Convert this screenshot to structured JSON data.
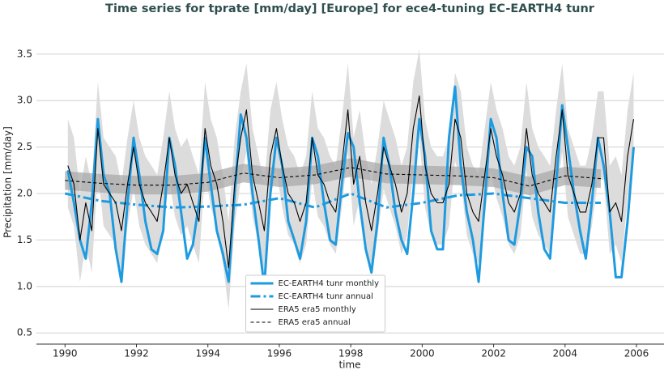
{
  "chart_data": {
    "type": "line",
    "title": "Time series for tprate [mm/day] [Europe] for ece4-tuning EC-EARTH4 tunr",
    "x_label": "time",
    "y_label": "Precipitation [mm/day]",
    "xlim": [
      1989.2,
      2006.77
    ],
    "ylim": [
      0.38,
      3.69
    ],
    "xticks": [
      1990,
      1992,
      1994,
      1996,
      1998,
      2000,
      2002,
      2004,
      2006
    ],
    "yticks": [
      0.5,
      {
        "value": 1,
        "label": "1.0"
      },
      1.5,
      {
        "value": 2,
        "label": "2.0"
      },
      2.5,
      {
        "value": 3,
        "label": "3.0"
      },
      3.5
    ],
    "grid": true,
    "legend": "lower center",
    "x": [
      1990.08,
      1990.25,
      1990.42,
      1990.58,
      1990.75,
      1990.92,
      1991.08,
      1991.25,
      1991.42,
      1991.58,
      1991.75,
      1991.92,
      1992.08,
      1992.25,
      1992.42,
      1992.58,
      1992.75,
      1992.92,
      1993.08,
      1993.25,
      1993.42,
      1993.58,
      1993.75,
      1993.92,
      1994.08,
      1994.25,
      1994.42,
      1994.58,
      1994.75,
      1994.92,
      1995.08,
      1995.25,
      1995.42,
      1995.58,
      1995.75,
      1995.92,
      1996.08,
      1996.25,
      1996.42,
      1996.58,
      1996.75,
      1996.92,
      1997.08,
      1997.25,
      1997.42,
      1997.58,
      1997.75,
      1997.92,
      1998.08,
      1998.25,
      1998.42,
      1998.58,
      1998.75,
      1998.92,
      1999.08,
      1999.25,
      1999.42,
      1999.58,
      1999.75,
      1999.92,
      2000.08,
      2000.25,
      2000.42,
      2000.58,
      2000.75,
      2000.92,
      2001.08,
      2001.25,
      2001.42,
      2001.58,
      2001.75,
      2001.92,
      2002.08,
      2002.25,
      2002.42,
      2002.58,
      2002.75,
      2002.92,
      2003.08,
      2003.25,
      2003.42,
      2003.58,
      2003.75,
      2003.92,
      2004.08,
      2004.25,
      2004.42,
      2004.58,
      2004.75,
      2004.92,
      2005.08,
      2005.25,
      2005.42,
      2005.58,
      2005.75,
      2005.92
    ],
    "bands": [
      {
        "color": "#dcdcdc",
        "lower": [
          1.85,
          1.65,
          1.05,
          1.45,
          1.15,
          2.25,
          1.65,
          1.55,
          1.45,
          1.15,
          1.65,
          2.05,
          1.65,
          1.45,
          1.35,
          1.25,
          1.65,
          2.15,
          1.75,
          1.55,
          1.65,
          1.45,
          1.25,
          2.25,
          1.85,
          1.65,
          1.25,
          0.75,
          1.65,
          2.15,
          2.45,
          1.75,
          1.45,
          1.15,
          1.95,
          2.25,
          1.85,
          1.55,
          1.45,
          1.25,
          1.45,
          2.15,
          1.75,
          1.65,
          1.45,
          1.35,
          1.85,
          2.45,
          1.65,
          1.95,
          1.45,
          1.15,
          1.55,
          2.05,
          1.85,
          1.65,
          1.35,
          1.55,
          2.25,
          2.6,
          1.85,
          1.55,
          1.45,
          1.45,
          1.65,
          2.35,
          2.15,
          1.55,
          1.35,
          1.25,
          1.75,
          2.25,
          1.95,
          1.75,
          1.45,
          1.35,
          1.55,
          2.25,
          1.75,
          1.55,
          1.45,
          1.35,
          1.95,
          2.45,
          1.75,
          1.55,
          1.35,
          1.35,
          1.65,
          2.15,
          2.15,
          1.35,
          1.45,
          1.25,
          1.95,
          2.35
        ],
        "upper": [
          2.8,
          2.6,
          2.0,
          2.4,
          2.1,
          3.2,
          2.6,
          2.5,
          2.4,
          2.1,
          2.6,
          3.0,
          2.6,
          2.4,
          2.3,
          2.2,
          2.6,
          3.1,
          2.7,
          2.5,
          2.6,
          2.4,
          2.2,
          3.2,
          2.8,
          2.6,
          2.2,
          1.7,
          2.6,
          3.1,
          3.4,
          2.7,
          2.4,
          2.1,
          2.9,
          3.2,
          2.8,
          2.5,
          2.4,
          2.2,
          2.4,
          3.1,
          2.7,
          2.6,
          2.4,
          2.3,
          2.8,
          3.4,
          2.6,
          2.9,
          2.4,
          2.1,
          2.5,
          3.0,
          2.8,
          2.6,
          2.3,
          2.5,
          3.2,
          3.55,
          2.8,
          2.5,
          2.4,
          2.4,
          2.6,
          3.3,
          3.1,
          2.5,
          2.3,
          2.2,
          2.7,
          3.2,
          2.9,
          2.7,
          2.4,
          2.3,
          2.5,
          3.2,
          2.7,
          2.5,
          2.4,
          2.3,
          2.9,
          3.4,
          2.7,
          2.5,
          2.3,
          2.3,
          2.6,
          3.1,
          3.1,
          2.3,
          2.4,
          2.2,
          2.9,
          3.3
        ]
      },
      {
        "color": "#a9a9a9",
        "x": [
          1990,
          1991,
          1992,
          1993,
          1994,
          1995,
          1996,
          1997,
          1998,
          1999,
          2000,
          2001,
          2002,
          2003,
          2004,
          2005
        ],
        "lower": [
          2.04,
          2.01,
          1.99,
          1.99,
          2.02,
          2.12,
          2.07,
          2.1,
          2.18,
          2.11,
          2.1,
          2.09,
          2.07,
          1.98,
          2.09,
          2.06
        ],
        "upper": [
          2.24,
          2.21,
          2.19,
          2.19,
          2.22,
          2.32,
          2.27,
          2.3,
          2.38,
          2.31,
          2.3,
          2.29,
          2.27,
          2.18,
          2.29,
          2.26
        ]
      }
    ],
    "series": [
      {
        "name": "EC-EARTH4 tunr monthly",
        "color": "#1e9be0",
        "style": "solid",
        "width": 3,
        "values": [
          2.25,
          1.9,
          1.5,
          1.3,
          1.9,
          2.8,
          2.2,
          2.0,
          1.4,
          1.05,
          1.9,
          2.6,
          2.2,
          1.7,
          1.4,
          1.35,
          1.6,
          2.6,
          2.3,
          1.8,
          1.3,
          1.45,
          1.9,
          2.6,
          2.1,
          1.6,
          1.35,
          1.05,
          2.0,
          2.85,
          2.6,
          2.0,
          1.5,
          1.0,
          2.0,
          2.6,
          2.3,
          1.7,
          1.5,
          1.3,
          1.7,
          2.6,
          2.4,
          1.9,
          1.5,
          1.45,
          2.1,
          2.65,
          2.5,
          1.9,
          1.4,
          1.15,
          1.7,
          2.6,
          2.3,
          1.8,
          1.5,
          1.35,
          2.0,
          2.8,
          2.4,
          1.6,
          1.4,
          1.4,
          2.6,
          3.15,
          2.3,
          1.8,
          1.5,
          1.05,
          1.9,
          2.8,
          2.6,
          2.0,
          1.5,
          1.45,
          1.9,
          2.5,
          2.4,
          1.8,
          1.4,
          1.3,
          2.1,
          2.95,
          2.5,
          2.0,
          1.6,
          1.3,
          1.9,
          2.6,
          2.3,
          1.8,
          1.1,
          1.1,
          1.7,
          2.5
        ]
      },
      {
        "name": "EC-EARTH4 tunr annual",
        "color": "#1e9be0",
        "style": "dashdot",
        "width": 3,
        "x": [
          1990,
          1991,
          1992,
          1993,
          1994,
          1995,
          1996,
          1997,
          1998,
          1999,
          2000,
          2001,
          2002,
          2003,
          2004,
          2005
        ],
        "values": [
          2.0,
          1.92,
          1.88,
          1.85,
          1.86,
          1.88,
          1.95,
          1.85,
          2.0,
          1.85,
          1.9,
          1.98,
          2.0,
          1.95,
          1.9,
          1.9
        ]
      },
      {
        "name": "ERA5 era5 monthly",
        "color": "#000000",
        "style": "solid",
        "width": 1.1,
        "values": [
          2.3,
          2.1,
          1.5,
          1.9,
          1.6,
          2.7,
          2.1,
          2.0,
          1.9,
          1.6,
          2.1,
          2.5,
          2.1,
          1.9,
          1.8,
          1.7,
          2.1,
          2.6,
          2.2,
          2.0,
          2.1,
          1.9,
          1.7,
          2.7,
          2.3,
          2.1,
          1.7,
          1.2,
          2.1,
          2.6,
          2.9,
          2.2,
          1.9,
          1.6,
          2.4,
          2.7,
          2.3,
          2.0,
          1.9,
          1.7,
          1.9,
          2.6,
          2.2,
          2.1,
          1.9,
          1.8,
          2.3,
          2.9,
          2.1,
          2.4,
          1.9,
          1.6,
          2.0,
          2.5,
          2.3,
          2.1,
          1.8,
          2.0,
          2.7,
          3.05,
          2.3,
          2.0,
          1.9,
          1.9,
          2.1,
          2.8,
          2.6,
          2.0,
          1.8,
          1.7,
          2.2,
          2.7,
          2.4,
          2.2,
          1.9,
          1.8,
          2.0,
          2.7,
          2.2,
          2.0,
          1.9,
          1.8,
          2.4,
          2.9,
          2.2,
          2.0,
          1.8,
          1.8,
          2.1,
          2.6,
          2.6,
          1.8,
          1.9,
          1.7,
          2.4,
          2.8
        ]
      },
      {
        "name": "ERA5 era5 annual",
        "color": "#000000",
        "style": "dashed",
        "width": 1.1,
        "x": [
          1990,
          1991,
          1992,
          1993,
          1994,
          1995,
          1996,
          1997,
          1998,
          1999,
          2000,
          2001,
          2002,
          2003,
          2004,
          2005
        ],
        "values": [
          2.14,
          2.11,
          2.09,
          2.09,
          2.12,
          2.22,
          2.17,
          2.2,
          2.28,
          2.21,
          2.2,
          2.19,
          2.17,
          2.08,
          2.19,
          2.16
        ]
      }
    ]
  }
}
